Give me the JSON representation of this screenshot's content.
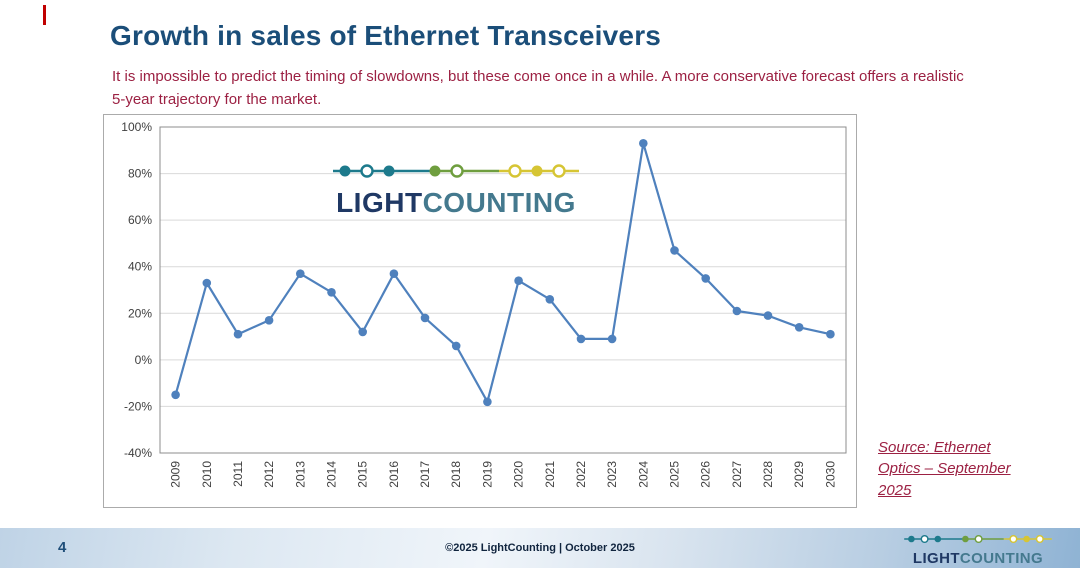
{
  "slide": {
    "title": "Growth in sales of Ethernet Transceivers",
    "subtitle": "It is impossible to predict the timing of slowdowns, but these come once in a while. A more conservative forecast offers a realistic 5-year trajectory for the market.",
    "accent_color": "#C00000",
    "title_color": "#1B4E79",
    "subtitle_color": "#9C2143"
  },
  "logo": {
    "light": "LIGHT",
    "counting": "COUNTING",
    "icon": "lightcounting-chain-icon",
    "colors": {
      "navy": "#1F3864",
      "teal": "#1D7A8C",
      "green": "#6F9E3F",
      "yellow": "#D6C534"
    }
  },
  "source_note": {
    "line1": "Source: Ethernet",
    "line2": "Optics – September",
    "line3": "2025"
  },
  "footer": {
    "page_number": "4",
    "copyright": "©2025 LightCounting | October 2025"
  },
  "chart_data": {
    "type": "line",
    "title": "",
    "xlabel": "",
    "ylabel": "",
    "x": [
      "2009",
      "2010",
      "2011",
      "2012",
      "2013",
      "2014",
      "2015",
      "2016",
      "2017",
      "2018",
      "2019",
      "2020",
      "2021",
      "2022",
      "2023",
      "2024",
      "2025",
      "2026",
      "2027",
      "2028",
      "2029",
      "2030"
    ],
    "values": [
      -15,
      33,
      11,
      17,
      37,
      29,
      12,
      37,
      18,
      6,
      -18,
      34,
      26,
      9,
      9,
      93,
      47,
      35,
      21,
      19,
      14,
      11
    ],
    "ylim": [
      -40,
      100
    ],
    "ytick_step": 20,
    "ytick_format": "percent",
    "grid": true,
    "legend": "none",
    "line_color": "#4F81BD",
    "marker": "circle"
  }
}
